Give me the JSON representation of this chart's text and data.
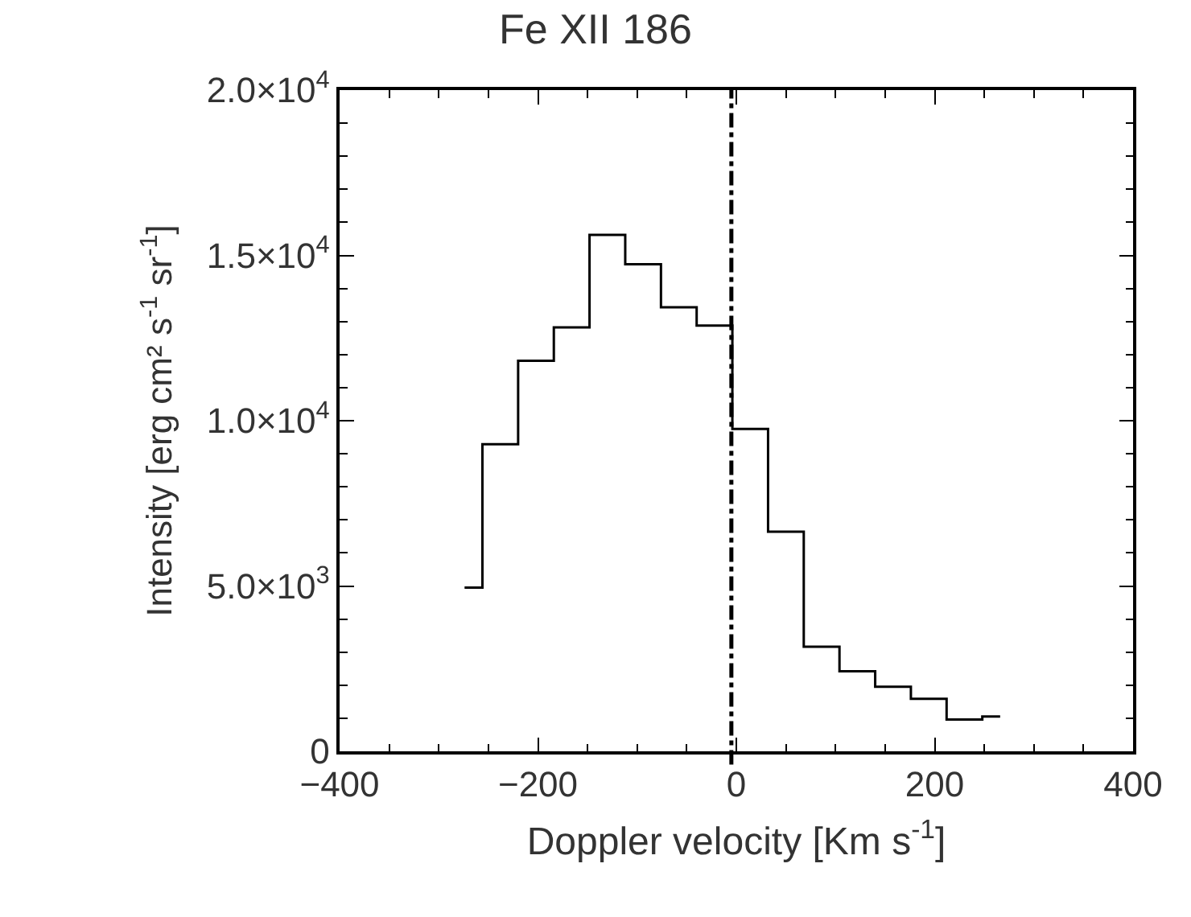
{
  "chart_data": {
    "type": "step",
    "title": "Fe XII 186",
    "xlabel": "Doppler velocity [Km s$^{-1}$]",
    "ylabel": "Intensity [erg cm² s$^{-1}$ sr$^{-1}$]",
    "x": [
      -274,
      -238,
      -202,
      -166,
      -130,
      -94,
      -58,
      -22,
      14,
      50,
      86,
      122,
      158,
      194,
      230,
      266
    ],
    "series": [
      {
        "color": "#000000",
        "values": [
          4950,
          9290,
          11810,
          12820,
          15620,
          14730,
          13430,
          12880,
          9750,
          6640,
          3160,
          2420,
          1950,
          1590,
          960,
          1050
        ]
      }
    ],
    "xlim": [
      -400,
      400
    ],
    "xticks": [
      -400,
      -200,
      0,
      200,
      400
    ],
    "ylim": [
      0,
      20000
    ],
    "yticks": [
      0,
      {
        "value": 5000,
        "label": "5.0×10$^{3}$"
      },
      {
        "value": 10000,
        "label": "1.0×10$^{4}$"
      },
      {
        "value": 15000,
        "label": "1.5×10$^{4}$"
      },
      {
        "value": 20000,
        "label": "2.0×10$^{4}$"
      }
    ],
    "ref_lines": [
      {
        "axis": "x",
        "value": -5,
        "label": null,
        "color": "#000000",
        "line_style": "dashdot"
      }
    ],
    "marker": "none",
    "line_style": "solid"
  }
}
